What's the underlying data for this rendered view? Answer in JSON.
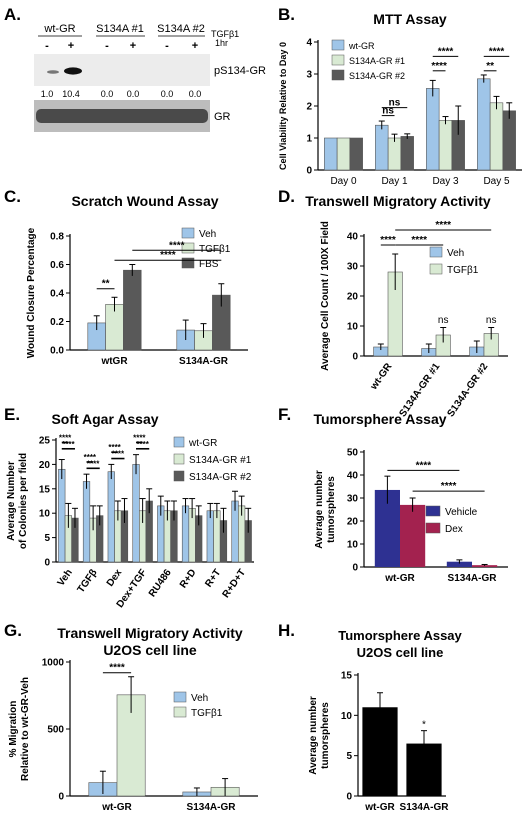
{
  "colors": {
    "blue": "#9fc5e8",
    "green": "#d9ead3",
    "gray": "#595959",
    "navy": "#2e3192",
    "maroon": "#a3224f",
    "black": "#000000"
  },
  "panelA": {
    "letter": "A.",
    "groups": [
      "wt-GR",
      "S134A #1",
      "S134A #2"
    ],
    "treat_label": "TGFβ1",
    "treat_time": "1hr",
    "signs": [
      "-",
      "+",
      "-",
      "+",
      "-",
      "+"
    ],
    "quant": [
      "1.0",
      "10.4",
      "0.0",
      "0.0",
      "0.0",
      "0.0"
    ],
    "band_top": "pS134-GR",
    "band_bottom": "GR"
  },
  "chart_data": [
    {
      "id": "B",
      "letter": "B.",
      "type": "bar",
      "title": "MTT Assay",
      "xlabel": "",
      "ylabel": "Cell Viability Relative to Day 0",
      "ylim": [
        0,
        4
      ],
      "categories": [
        "Day 0",
        "Day 1",
        "Day 3",
        "Day 5"
      ],
      "series": [
        {
          "name": "wt-GR",
          "values": [
            1,
            1.4,
            2.55,
            2.85
          ],
          "err": [
            0,
            0.13,
            0.25,
            0.12
          ]
        },
        {
          "name": "S134A-GR #1",
          "values": [
            1,
            1.0,
            1.55,
            2.1
          ],
          "err": [
            0,
            0.12,
            0.12,
            0.2
          ]
        },
        {
          "name": "S134A-GR #2",
          "values": [
            1,
            1.05,
            1.55,
            1.85
          ],
          "err": [
            0,
            0.08,
            0.45,
            0.25
          ]
        }
      ],
      "significance": [
        "ns",
        "ns",
        "****",
        "****",
        "****",
        "**"
      ]
    },
    {
      "id": "C",
      "letter": "C.",
      "type": "bar",
      "title": "Scratch Wound Assay",
      "xlabel": "",
      "ylabel": "Wound Closure Percentage",
      "ylim": [
        0,
        0.8
      ],
      "categories": [
        "wtGR",
        "S134A-GR"
      ],
      "series": [
        {
          "name": "Veh",
          "values": [
            0.19,
            0.14
          ],
          "err": [
            0.05,
            0.07
          ]
        },
        {
          "name": "TGFβ1",
          "values": [
            0.32,
            0.135
          ],
          "err": [
            0.05,
            0.05
          ]
        },
        {
          "name": "FBS",
          "values": [
            0.56,
            0.385
          ],
          "err": [
            0.04,
            0.08
          ]
        }
      ],
      "significance": [
        "**",
        "****",
        "****"
      ]
    },
    {
      "id": "D",
      "letter": "D.",
      "type": "bar",
      "title": "Transwell Migratory Activity",
      "xlabel": "",
      "ylabel": "Average Cell Count / 100X Field",
      "ylim": [
        0,
        40
      ],
      "categories": [
        "wt-GR",
        "S134A-GR #1",
        "S134A-GR #2"
      ],
      "series": [
        {
          "name": "Veh",
          "values": [
            3,
            2.5,
            3
          ],
          "err": [
            1,
            1.5,
            2
          ]
        },
        {
          "name": "TGFβ1",
          "values": [
            28,
            7,
            7.5
          ],
          "err": [
            6,
            2.5,
            2
          ]
        }
      ],
      "significance": [
        "****",
        "****",
        "****",
        "ns",
        "ns"
      ]
    },
    {
      "id": "E",
      "letter": "E.",
      "type": "bar",
      "title": "Soft Agar Assay",
      "xlabel": "",
      "ylabel": "Average Number of Colonies per field",
      "ylim": [
        0,
        25
      ],
      "categories": [
        "Veh",
        "TGFβ",
        "Dex",
        "Dex+TGF",
        "RU486",
        "R+D",
        "R+T",
        "R+D+T"
      ],
      "series": [
        {
          "name": "wt-GR",
          "values": [
            19,
            16.5,
            18.5,
            20,
            11.5,
            11.5,
            10.5,
            12.5
          ],
          "err": [
            2,
            1.5,
            1.5,
            2,
            2,
            1.5,
            1.5,
            2
          ]
        },
        {
          "name": "S134A-GR #1",
          "values": [
            9.5,
            9,
            10.5,
            10.5,
            10.5,
            11,
            10.5,
            11.5
          ],
          "err": [
            2.5,
            2.5,
            2,
            2.5,
            2,
            2,
            1.5,
            2
          ]
        },
        {
          "name": "S134A-GR #2",
          "values": [
            9,
            9.5,
            10.5,
            12.5,
            10.5,
            9.5,
            8.5,
            8.5
          ],
          "err": [
            2,
            2,
            2.5,
            2.5,
            2,
            2,
            2.5,
            2.5
          ]
        }
      ],
      "significance": [
        "****",
        "****",
        "****",
        "****",
        "****",
        "****",
        "****",
        "****"
      ]
    },
    {
      "id": "F",
      "letter": "F.",
      "type": "bar",
      "title": "Tumorsphere Assay",
      "xlabel": "",
      "ylabel": "Average number tumorspheres",
      "ylim": [
        0,
        50
      ],
      "categories": [
        "wt-GR",
        "S134A-GR"
      ],
      "series": [
        {
          "name": "Vehicle",
          "values": [
            33.5,
            2.3
          ],
          "err": [
            6,
            0.8
          ]
        },
        {
          "name": "Dex",
          "values": [
            27,
            0.8
          ],
          "err": [
            3,
            0.3
          ]
        }
      ],
      "significance": [
        "****",
        "****"
      ]
    },
    {
      "id": "G",
      "letter": "G.",
      "type": "bar",
      "title": "Transwell Migratory Activity U2OS cell line",
      "xlabel": "",
      "ylabel": "% Migration Relative to wt-GR-Veh",
      "ylim": [
        0,
        1000
      ],
      "categories": [
        "wt-GR",
        "S134A-GR"
      ],
      "series": [
        {
          "name": "Veh",
          "values": [
            100,
            30
          ],
          "err": [
            85,
            30
          ]
        },
        {
          "name": "TGFβ1",
          "values": [
            755,
            65
          ],
          "err": [
            135,
            65
          ]
        }
      ],
      "significance": [
        "****"
      ]
    },
    {
      "id": "H",
      "letter": "H.",
      "type": "bar",
      "title": "Tumorsphere Assay U2OS cell line",
      "xlabel": "",
      "ylabel": "Average number tumorspheres",
      "ylim": [
        0,
        15
      ],
      "categories": [
        "wt-GR",
        "S134A-GR"
      ],
      "series": [
        {
          "values": [
            11,
            6.5
          ],
          "err": [
            1.8,
            1.6
          ]
        }
      ],
      "significance": [
        "*"
      ]
    }
  ]
}
